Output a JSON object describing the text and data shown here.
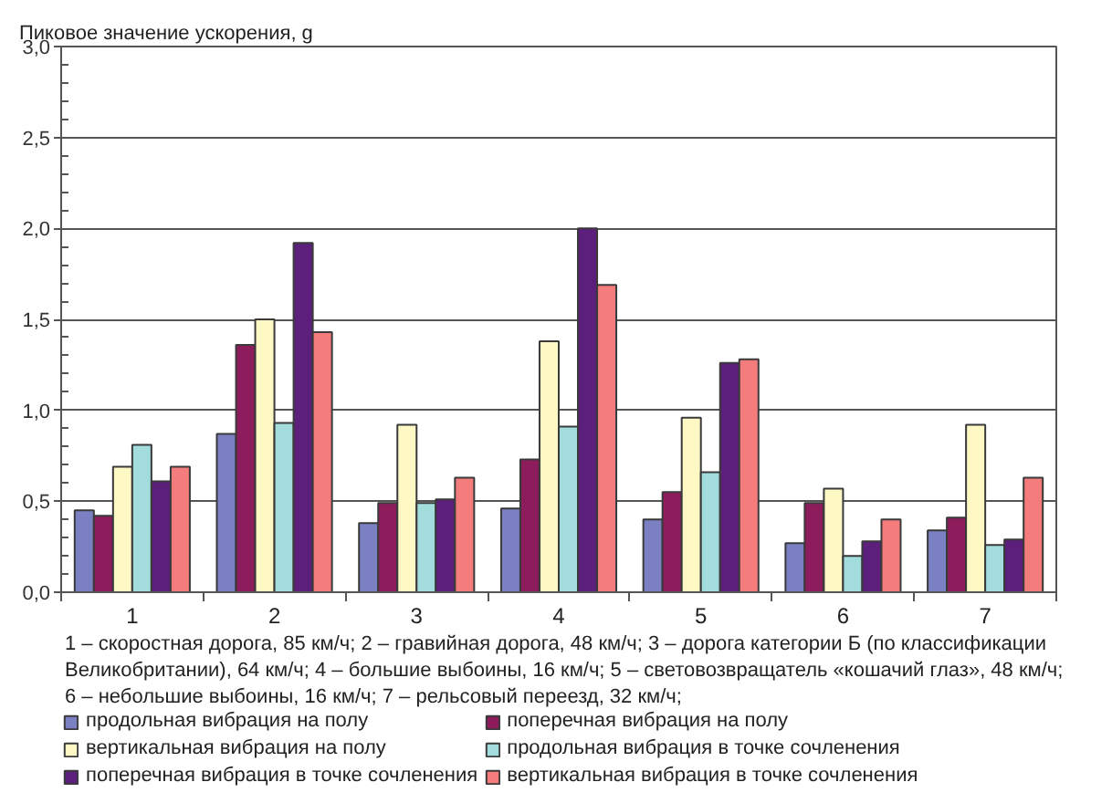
{
  "chart_data": {
    "type": "bar",
    "ylabel": "Пиковое значение ускорения, g",
    "categories": [
      "1",
      "2",
      "3",
      "4",
      "5",
      "6",
      "7"
    ],
    "series": [
      {
        "name": "продольная вибрация на полу",
        "color": "#7a80c2",
        "values": [
          0.45,
          0.87,
          0.38,
          0.46,
          0.4,
          0.27,
          0.34
        ]
      },
      {
        "name": "поперечная вибрация на полу",
        "color": "#8c1c5c",
        "values": [
          0.42,
          1.36,
          0.49,
          0.73,
          0.55,
          0.49,
          0.41
        ]
      },
      {
        "name": "вертикальная вибрация на полу",
        "color": "#fdf8c4",
        "values": [
          0.69,
          1.5,
          0.92,
          1.38,
          0.96,
          0.57,
          0.92
        ]
      },
      {
        "name": "продольная вибрация в точке сочленения",
        "color": "#a3dcdc",
        "values": [
          0.81,
          0.93,
          0.49,
          0.91,
          0.66,
          0.2,
          0.26
        ]
      },
      {
        "name": "поперечная вибрация в точке сочленения",
        "color": "#5c207c",
        "values": [
          0.61,
          1.92,
          0.51,
          2.0,
          1.26,
          0.28,
          0.29
        ]
      },
      {
        "name": "вертикальная вибрация в точке сочленения",
        "color": "#f47c7c",
        "values": [
          0.69,
          1.43,
          0.63,
          1.69,
          1.28,
          0.4,
          0.63
        ]
      }
    ],
    "ylim": [
      0,
      3
    ],
    "yticks": [
      {
        "value": 0,
        "label": "0,0"
      },
      {
        "value": 0.5,
        "label": "0,5"
      },
      {
        "value": 1,
        "label": "1,0"
      },
      {
        "value": 1.5,
        "label": "1,5"
      },
      {
        "value": 2,
        "label": "2,0"
      },
      {
        "value": 2.5,
        "label": "2,5"
      },
      {
        "value": 3,
        "label": "3,0"
      }
    ],
    "grid": "y",
    "legend": "bottom",
    "annotations": [
      "1 – скоростная дорога, 85 км/ч; 2 – гравийная дорога, 48 км/ч; 3 – дорога категории Б (по классификации Великобритании), 64 км/ч; 4 – большие выбоины, 16 км/ч; 5 – световозвращатель «кошачий глаз», 48 км/ч; 6 – небольшие выбоины, 16 км/ч; 7 – рельсовый переезд, 32 км/ч;"
    ]
  }
}
